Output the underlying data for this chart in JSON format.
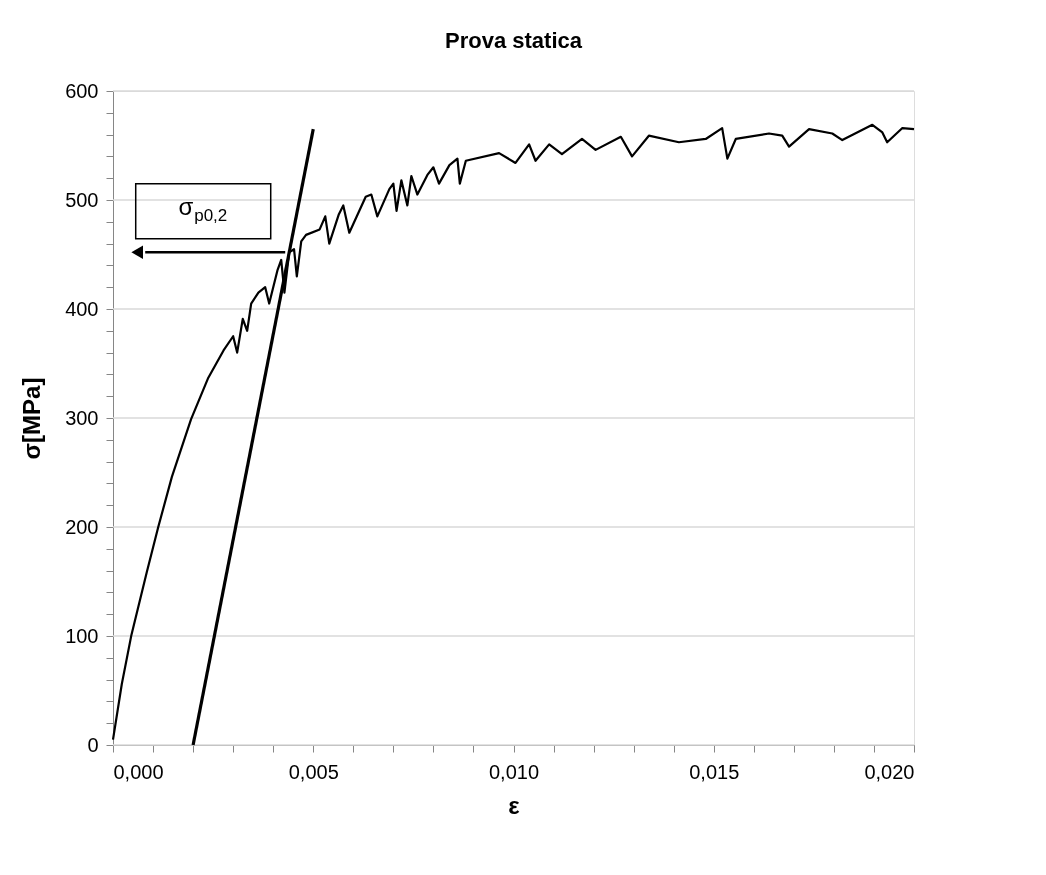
{
  "chart_data": {
    "type": "line",
    "title": "Prova statica",
    "xlabel": "ε",
    "ylabel": "σ[MPa]",
    "xlim": [
      0,
      0.02
    ],
    "ylim": [
      0,
      600
    ],
    "xticks": [
      {
        "value": 0,
        "label": "0,000"
      },
      {
        "value": 0.001,
        "label": null
      },
      {
        "value": 0.002,
        "label": null
      },
      {
        "value": 0.003,
        "label": null
      },
      {
        "value": 0.004,
        "label": null
      },
      {
        "value": 0.005,
        "label": "0,005"
      },
      {
        "value": 0.006,
        "label": null
      },
      {
        "value": 0.007,
        "label": null
      },
      {
        "value": 0.008,
        "label": null
      },
      {
        "value": 0.009,
        "label": null
      },
      {
        "value": 0.01,
        "label": "0,010"
      },
      {
        "value": 0.011,
        "label": null
      },
      {
        "value": 0.012,
        "label": null
      },
      {
        "value": 0.013,
        "label": null
      },
      {
        "value": 0.014,
        "label": null
      },
      {
        "value": 0.015,
        "label": "0,015"
      },
      {
        "value": 0.016,
        "label": null
      },
      {
        "value": 0.017,
        "label": null
      },
      {
        "value": 0.018,
        "label": null
      },
      {
        "value": 0.019,
        "label": null
      },
      {
        "value": 0.02,
        "label": "0,020"
      }
    ],
    "yticks": [
      0,
      {
        "value": 20,
        "label": null
      },
      {
        "value": 40,
        "label": null
      },
      {
        "value": 60,
        "label": null
      },
      {
        "value": 80,
        "label": null
      },
      100,
      {
        "value": 120,
        "label": null
      },
      {
        "value": 140,
        "label": null
      },
      {
        "value": 160,
        "label": null
      },
      {
        "value": 180,
        "label": null
      },
      200,
      {
        "value": 220,
        "label": null
      },
      {
        "value": 240,
        "label": null
      },
      {
        "value": 260,
        "label": null
      },
      {
        "value": 280,
        "label": null
      },
      300,
      {
        "value": 320,
        "label": null
      },
      {
        "value": 340,
        "label": null
      },
      {
        "value": 360,
        "label": null
      },
      {
        "value": 380,
        "label": null
      },
      400,
      {
        "value": 420,
        "label": null
      },
      {
        "value": 440,
        "label": null
      },
      {
        "value": 460,
        "label": null
      },
      {
        "value": 480,
        "label": null
      },
      500,
      {
        "value": 520,
        "label": null
      },
      {
        "value": 540,
        "label": null
      },
      {
        "value": 560,
        "label": null
      },
      {
        "value": 580,
        "label": null
      },
      600
    ],
    "grid": "y",
    "marker": "none",
    "line_style": "solid",
    "series": [
      {
        "color": "#000000",
        "x": [
          0,
          0.00022,
          0.00046,
          0.00084,
          0.00113,
          0.00147,
          0.00195,
          0.00238,
          0.00276,
          0.003,
          0.0031,
          0.00324,
          0.00335,
          0.00345,
          0.00363,
          0.0038,
          0.0039,
          0.00411,
          0.0042,
          0.00428,
          0.0044,
          0.00452,
          0.00459,
          0.0047,
          0.00482,
          0.00516,
          0.0053,
          0.0054,
          0.00564,
          0.00575,
          0.0059,
          0.00631,
          0.00645,
          0.0066,
          0.0069,
          0.007,
          0.00708,
          0.0072,
          0.00735,
          0.00745,
          0.0076,
          0.00785,
          0.008,
          0.00814,
          0.0084,
          0.0086,
          0.00866,
          0.00881,
          0.00964,
          0.01005,
          0.01039,
          0.01055,
          0.01089,
          0.01121,
          0.01171,
          0.01205,
          0.01268,
          0.01296,
          0.01338,
          0.01413,
          0.0148,
          0.01521,
          0.01534,
          0.01555,
          0.01638,
          0.01671,
          0.01688,
          0.01738,
          0.01796,
          0.01821,
          0.01896,
          0.01921,
          0.01933,
          0.01971,
          0.02
        ],
        "values": [
          5,
          56,
          101,
          158,
          200,
          246,
          299,
          337,
          362,
          375,
          360,
          391,
          380,
          405,
          415,
          420,
          405,
          436,
          445,
          415,
          452,
          455,
          430,
          462,
          468,
          473,
          485,
          460,
          487,
          495,
          470,
          503,
          505,
          485,
          510,
          515,
          490,
          518,
          495,
          522,
          505,
          523,
          530,
          515,
          532,
          538,
          515,
          536,
          543,
          534,
          551,
          536,
          551,
          542,
          556,
          546,
          558,
          540,
          559,
          553,
          556,
          566,
          538,
          556,
          561,
          559,
          549,
          565,
          561,
          555,
          569,
          562,
          553,
          566,
          565
        ]
      },
      {
        "color": "#000000",
        "x": [
          0.002,
          0.005
        ],
        "values": [
          0,
          565
        ]
      }
    ],
    "annotations": [
      {
        "text": "σ$_{p0,2}$",
        "x": 0.0043,
        "y": 452
      }
    ]
  }
}
